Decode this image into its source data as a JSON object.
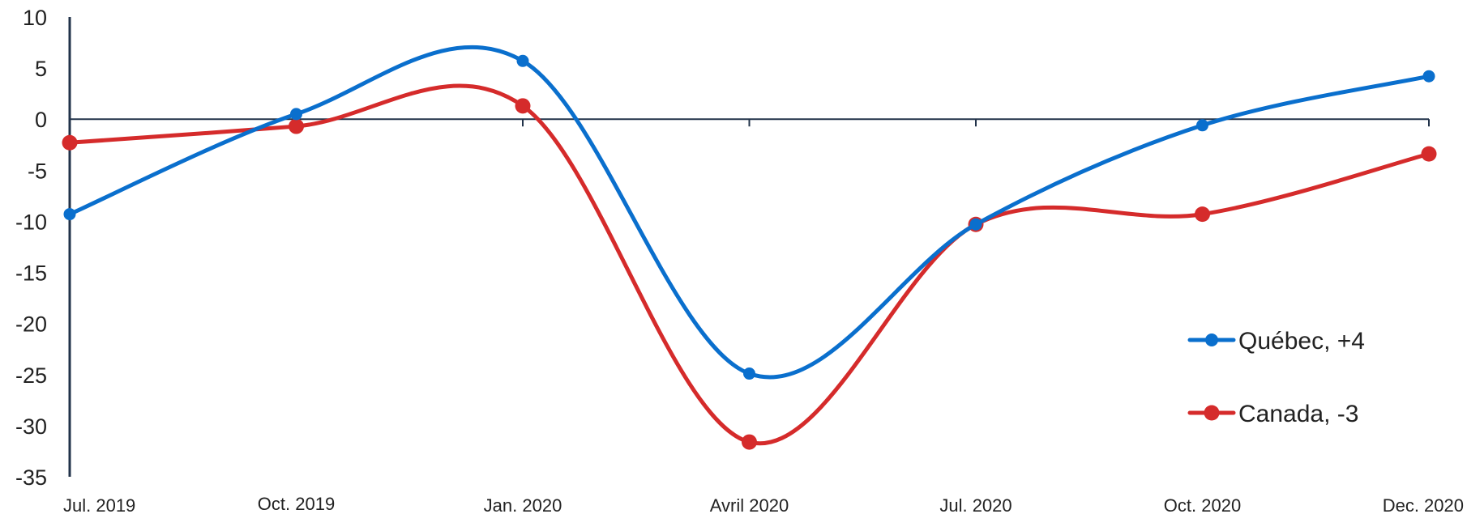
{
  "chart_data": {
    "type": "line",
    "title": "",
    "xlabel": "",
    "ylabel": "",
    "categories": [
      "Jul. 2019",
      "Oct. 2019",
      "Jan. 2020",
      "Avril 2020",
      "Jul. 2020",
      "Oct. 2020",
      "Dec. 2020"
    ],
    "ylim": [
      -35,
      10
    ],
    "yticks": [
      10,
      5,
      0,
      -5,
      -10,
      -15,
      -20,
      -25,
      -30,
      -35
    ],
    "grid": false,
    "legend_position": "bottom-right",
    "series": [
      {
        "name": "Québec, +4",
        "color": "#0a6fcd",
        "values": [
          -9.3,
          0.5,
          5.7,
          -24.9,
          -10.3,
          -0.6,
          4.2
        ]
      },
      {
        "name": "Canada, -3",
        "color": "#d52b2b",
        "values": [
          -2.3,
          -0.7,
          1.3,
          -31.6,
          -10.3,
          -9.3,
          -3.4
        ]
      }
    ]
  }
}
